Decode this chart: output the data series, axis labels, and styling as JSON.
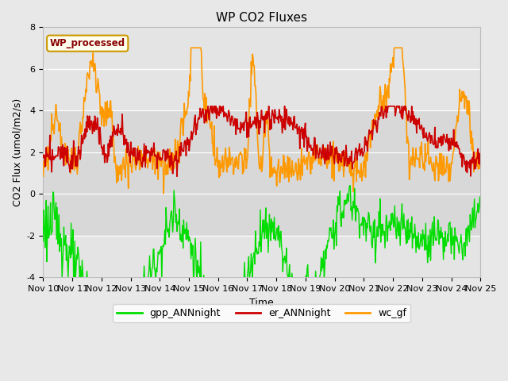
{
  "title": "WP CO2 Fluxes",
  "xlabel": "Time",
  "ylabel_display": "CO2 Flux (umol/m2/s)",
  "ylim": [
    -4,
    8
  ],
  "yticks": [
    -4,
    -2,
    0,
    2,
    4,
    6,
    8
  ],
  "n_days": 15,
  "n_per_day": 48,
  "start_day": 10,
  "colors": {
    "gpp": "#00dd00",
    "er": "#cc0000",
    "wc": "#ff9900"
  },
  "legend_labels": [
    "gpp_ANNnight",
    "er_ANNnight",
    "wc_gf"
  ],
  "watermark_text": "WP_processed",
  "watermark_bg": "#fffff0",
  "watermark_fg": "#880000",
  "watermark_edge": "#cc9900",
  "bg_inner": "#e8e8e8",
  "band_color": "#d8d8d8",
  "grid_color": "#ffffff",
  "fig_bg": "#e8e8e8",
  "title_fontsize": 11,
  "label_fontsize": 9,
  "tick_fontsize": 8
}
